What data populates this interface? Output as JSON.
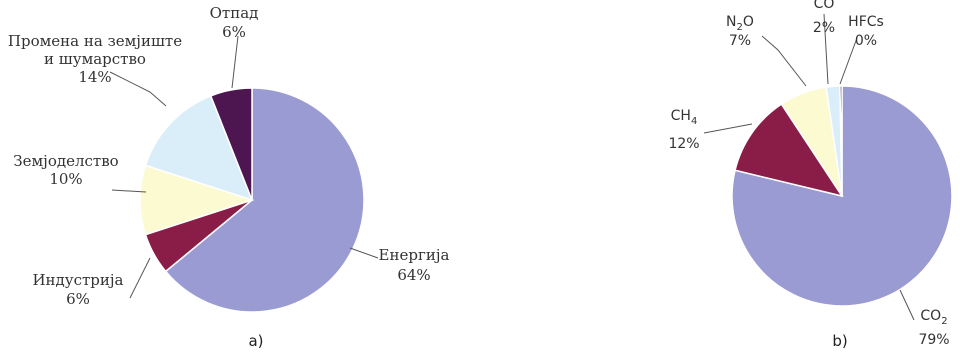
{
  "chart_data": [
    {
      "type": "pie",
      "panel_label": "a)",
      "title": "",
      "slices": [
        {
          "label": "Енергија",
          "value_label": "64%",
          "value": 64,
          "color": "#9b9bd3"
        },
        {
          "label": "Индустрија",
          "value_label": "6%",
          "value": 6,
          "color": "#8a1d48"
        },
        {
          "label": "Земјоделство",
          "value_label": "10%",
          "value": 10,
          "color": "#fbfad0"
        },
        {
          "label": "Промена на земјиште и шумарство",
          "label_lines": [
            "Промена на земјиште",
            "и шумарство"
          ],
          "value_label": "14%",
          "value": 14,
          "color": "#d9eef8"
        },
        {
          "label": "Отпад",
          "value_label": "6%",
          "value": 6,
          "color": "#4e1650"
        }
      ]
    },
    {
      "type": "pie",
      "panel_label": "b)",
      "title": "",
      "slices": [
        {
          "label": "CO2",
          "label_main": "CO",
          "label_sub": "2",
          "value_label": "79%",
          "value": 79,
          "color": "#9b9bd3"
        },
        {
          "label": "CH4",
          "label_main": "CH",
          "label_sub": "4",
          "value_label": "12%",
          "value": 12,
          "color": "#8a1d48"
        },
        {
          "label": "N2O",
          "label_main": "N",
          "label_sub": "2",
          "label_after": "O",
          "value_label": "7%",
          "value": 7,
          "color": "#fbfad0"
        },
        {
          "label": "CO",
          "label_main": "CO",
          "value_label": "2%",
          "value": 2,
          "color": "#d9eef8"
        },
        {
          "label": "HFCs",
          "label_main": "HFCs",
          "value_label": "0%",
          "value": 0.3,
          "color": "#4e1650"
        }
      ]
    }
  ]
}
